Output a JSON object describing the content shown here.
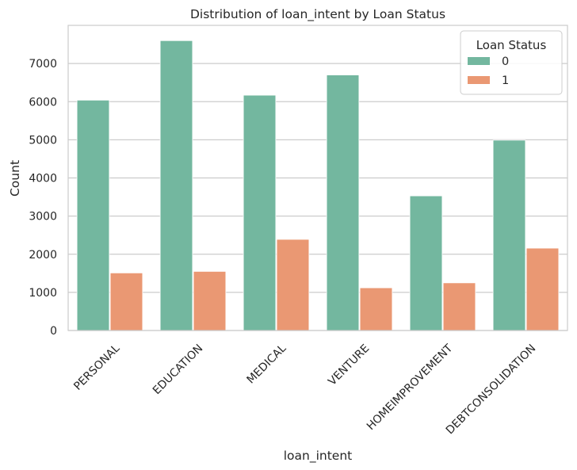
{
  "chart_data": {
    "type": "bar",
    "title": "Distribution of loan_intent by Loan Status",
    "xlabel": "loan_intent",
    "ylabel": "Count",
    "categories": [
      "PERSONAL",
      "EDUCATION",
      "MEDICAL",
      "VENTURE",
      "HOMEIMPROVEMENT",
      "DEBTCONSOLIDATION"
    ],
    "series": [
      {
        "name": "0",
        "color": "#73b79f",
        "values": [
          6040,
          7600,
          6170,
          6700,
          3530,
          4990
        ]
      },
      {
        "name": "1",
        "color": "#ea9873",
        "values": [
          1510,
          1550,
          2390,
          1120,
          1250,
          2160
        ]
      }
    ],
    "ylim": [
      0,
      8000
    ],
    "yticks": [
      0,
      1000,
      2000,
      3000,
      4000,
      5000,
      6000,
      7000
    ],
    "grid": true,
    "legend": {
      "title": "Loan Status",
      "placement": "top-right"
    }
  }
}
